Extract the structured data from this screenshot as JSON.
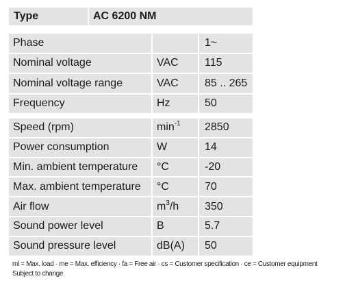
{
  "type_row": {
    "label": "Type",
    "value": "AC 6200 NM"
  },
  "group1": [
    {
      "param": "Phase",
      "unit": "",
      "value": "1~"
    },
    {
      "param": "Nominal voltage",
      "unit": "VAC",
      "value": "115"
    },
    {
      "param": "Nominal voltage range",
      "unit": "VAC",
      "value": "85 .. 265"
    },
    {
      "param": "Frequency",
      "unit": "Hz",
      "value": "50"
    }
  ],
  "group2": [
    {
      "param": "Speed (rpm)",
      "unit_base": "min",
      "unit_sup": "-1",
      "unit_tail": "",
      "value": "2850"
    },
    {
      "param": "Power consumption",
      "unit_base": "W",
      "unit_sup": "",
      "unit_tail": "",
      "value": "14"
    },
    {
      "param": "Min. ambient temperature",
      "unit_base": "°C",
      "unit_sup": "",
      "unit_tail": "",
      "value": "-20"
    },
    {
      "param": "Max. ambient temperature",
      "unit_base": "°C",
      "unit_sup": "",
      "unit_tail": "",
      "value": "70"
    },
    {
      "param": "Air flow",
      "unit_base": "m",
      "unit_sup": "3",
      "unit_tail": "/h",
      "value": "350"
    },
    {
      "param": "Sound power level",
      "unit_base": "B",
      "unit_sup": "",
      "unit_tail": "",
      "value": "5.7"
    },
    {
      "param": "Sound pressure level",
      "unit_base": "dB(A)",
      "unit_sup": "",
      "unit_tail": "",
      "value": "50"
    }
  ],
  "footnote": {
    "line1": "ml = Max. load · me = Max. efficiency · fa = Free air · cs = Customer specification · ce = Customer equipment",
    "line2": "Subject to change"
  }
}
